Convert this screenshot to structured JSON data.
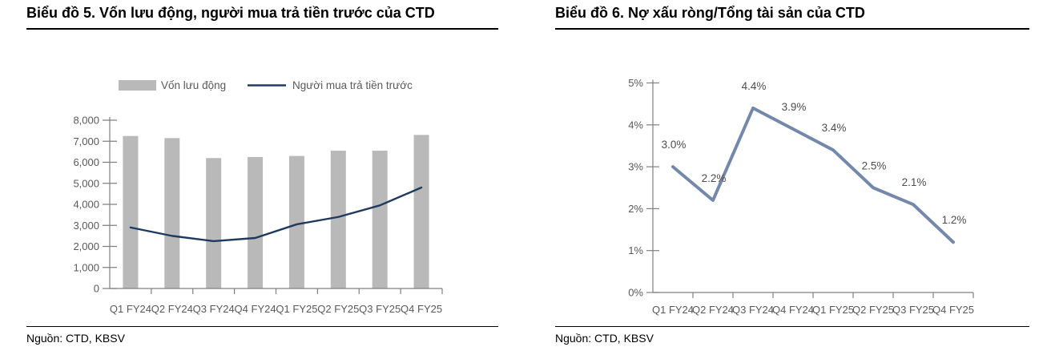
{
  "left_panel": {
    "title": "Biểu đồ 5. Vốn lưu động, người mua trả tiền trước của CTD",
    "source": "Nguồn: CTD, KBSV"
  },
  "right_panel": {
    "title": "Biểu đồ 6. Nợ xấu ròng/Tổng tài sản của CTD",
    "source": "Nguồn: CTD, KBSV"
  },
  "colors": {
    "bar": "#b9b9b9",
    "navy_line": "#1f3a5f",
    "steel_line": "#7488ab",
    "axis": "#808080",
    "tick_label": "#595959",
    "data_label": "#4d4d4d",
    "title": "#000000"
  },
  "chart_data": [
    {
      "type": "bar",
      "subtype": "combo-bar-line",
      "title": "Biểu đồ 5. Vốn lưu động, người mua trả tiền trước của CTD",
      "categories": [
        "Q1 FY24",
        "Q2 FY24",
        "Q3 FY24",
        "Q4 FY24",
        "Q1 FY25",
        "Q2 FY25",
        "Q3 FY25",
        "Q4 FY25"
      ],
      "series": [
        {
          "name": "Vốn lưu động",
          "type": "bar",
          "color": "#b9b9b9",
          "values": [
            7250,
            7150,
            6200,
            6250,
            6300,
            6550,
            6550,
            7300
          ]
        },
        {
          "name": "Người mua trả tiền trước",
          "type": "line",
          "color": "#1f3a5f",
          "values": [
            2900,
            2500,
            2250,
            2400,
            3050,
            3400,
            3950,
            4800
          ]
        }
      ],
      "xlabel": "",
      "ylabel": "",
      "ylim": [
        0,
        8000
      ],
      "ytick_labels": [
        "0",
        "1,000",
        "2,000",
        "3,000",
        "4,000",
        "5,000",
        "6,000",
        "7,000",
        "8,000"
      ],
      "legend_position": "top",
      "grid": false
    },
    {
      "type": "line",
      "title": "Biểu đồ 6. Nợ xấu ròng/Tổng tài sản của CTD",
      "categories": [
        "Q1 FY24",
        "Q2 FY24",
        "Q3 FY24",
        "Q4 FY24",
        "Q1 FY25",
        "Q2 FY25",
        "Q3 FY25",
        "Q4 FY25"
      ],
      "series": [
        {
          "name": "Nợ xấu ròng/Tổng tài sản",
          "type": "line",
          "color": "#7488ab",
          "values": [
            3.0,
            2.2,
            4.4,
            3.9,
            3.4,
            2.5,
            2.1,
            1.2
          ]
        }
      ],
      "data_labels": [
        "3.0%",
        "2.2%",
        "4.4%",
        "3.9%",
        "3.4%",
        "2.5%",
        "2.1%",
        "1.2%"
      ],
      "xlabel": "",
      "ylabel": "",
      "ylim": [
        0,
        5
      ],
      "ytick_labels": [
        "0%",
        "1%",
        "2%",
        "3%",
        "4%",
        "5%"
      ],
      "legend_position": "none",
      "grid": false
    }
  ]
}
